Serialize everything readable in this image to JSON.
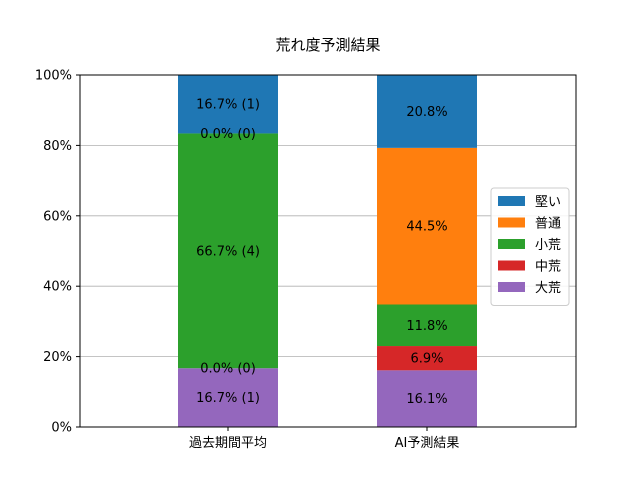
{
  "chart_data": {
    "type": "bar",
    "stacked": true,
    "title": "荒れ度予測結果",
    "xlabel": "",
    "ylabel": "",
    "categories": [
      "過去期間平均",
      "AI予測結果"
    ],
    "ylim": [
      0,
      100
    ],
    "yticks": [
      "0%",
      "20%",
      "40%",
      "60%",
      "80%",
      "100%"
    ],
    "grid": "horizontal",
    "legend_position": "right",
    "series": [
      {
        "name": "大荒",
        "color": "#9467bd",
        "values": [
          16.7,
          16.1
        ],
        "labels": [
          "16.7% (1)",
          "16.1%"
        ]
      },
      {
        "name": "中荒",
        "color": "#d62728",
        "values": [
          0.0,
          6.9
        ],
        "labels": [
          "0.0% (0)",
          "6.9%"
        ]
      },
      {
        "name": "小荒",
        "color": "#2ca02c",
        "values": [
          66.7,
          11.8
        ],
        "labels": [
          "66.7% (4)",
          "11.8%"
        ]
      },
      {
        "name": "普通",
        "color": "#ff7f0e",
        "values": [
          0.0,
          44.5
        ],
        "labels": [
          "0.0% (0)",
          "44.5%"
        ]
      },
      {
        "name": "堅い",
        "color": "#1f77b4",
        "values": [
          16.7,
          20.8
        ],
        "labels": [
          "16.7% (1)",
          "20.8%"
        ]
      }
    ],
    "legend_order": [
      "堅い",
      "普通",
      "小荒",
      "中荒",
      "大荒"
    ]
  }
}
